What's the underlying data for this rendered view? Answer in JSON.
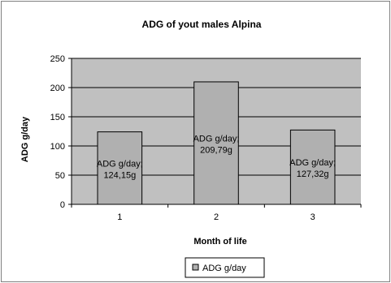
{
  "chart_data": {
    "type": "bar",
    "title": "ADG of yout males Alpina",
    "xlabel": "Month of life",
    "ylabel": "ADG g/day",
    "categories": [
      "1",
      "2",
      "3"
    ],
    "series": [
      {
        "name": "ADG g/day",
        "values": [
          124.15,
          209.79,
          127.32
        ],
        "data_labels": [
          [
            "ADG g/day;",
            "124,15g"
          ],
          [
            "ADG g/day;",
            "209,79g"
          ],
          [
            "ADG g/day;",
            "127,32g"
          ]
        ]
      }
    ],
    "ylim": [
      0,
      250
    ],
    "yticks": [
      "0",
      "50",
      "100",
      "150",
      "200",
      "250"
    ],
    "ytick_values": [
      0,
      50,
      100,
      150,
      200,
      250
    ],
    "grid": true,
    "legend_position": "bottom",
    "colors": {
      "plot_background": "#c0c0c0",
      "bar_fill": "#b0b0b0",
      "bar_stroke": "#000000",
      "gridline": "#000000",
      "frame": "#808080"
    }
  }
}
